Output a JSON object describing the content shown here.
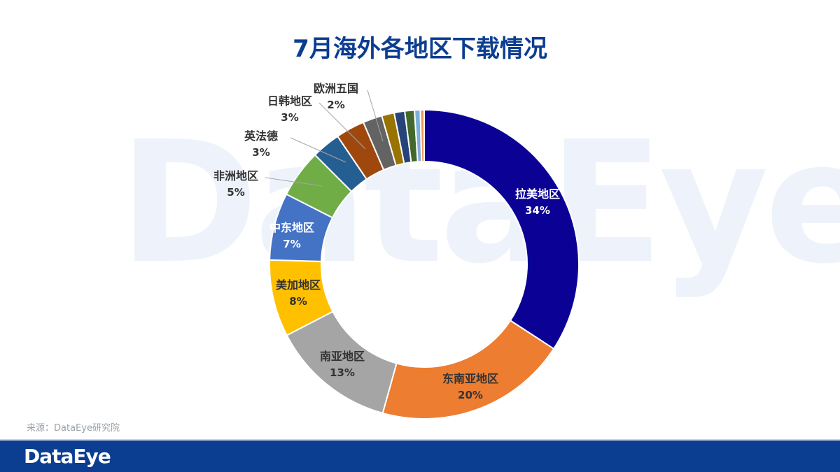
{
  "title": "7月海外各地区下载情况",
  "watermark": "DataEye",
  "source": "来源：DataEye研究院",
  "logo": "DataEye",
  "chart_data": {
    "type": "pie",
    "variant": "donut",
    "title": "7月海外各地区下载情况",
    "slices": [
      {
        "name": "拉美地区",
        "value": 34,
        "label": "34%",
        "color": "#0b0194"
      },
      {
        "name": "东南亚地区",
        "value": 20,
        "label": "20%",
        "color": "#ed7d31"
      },
      {
        "name": "南亚地区",
        "value": 13,
        "label": "13%",
        "color": "#a5a5a5"
      },
      {
        "name": "美加地区",
        "value": 8,
        "label": "8%",
        "color": "#ffc000"
      },
      {
        "name": "中东地区",
        "value": 7,
        "label": "7%",
        "color": "#4472c4"
      },
      {
        "name": "非洲地区",
        "value": 5,
        "label": "5%",
        "color": "#70ad47"
      },
      {
        "name": "英法德",
        "value": 3,
        "label": "3%",
        "color": "#255e91"
      },
      {
        "name": "日韩地区",
        "value": 3,
        "label": "3%",
        "color": "#9e480e"
      },
      {
        "name": "欧洲五国",
        "value": 2,
        "label": "2%",
        "color": "#636363"
      },
      {
        "name": "",
        "value": 1.3,
        "label": "",
        "color": "#997300"
      },
      {
        "name": "",
        "value": 1.1,
        "label": "",
        "color": "#264478"
      },
      {
        "name": "",
        "value": 1.0,
        "label": "",
        "color": "#43682b"
      },
      {
        "name": "",
        "value": 0.6,
        "label": "",
        "color": "#7cafdd"
      },
      {
        "name": "",
        "value": 0.4,
        "label": "",
        "color": "#f1975a"
      }
    ]
  }
}
